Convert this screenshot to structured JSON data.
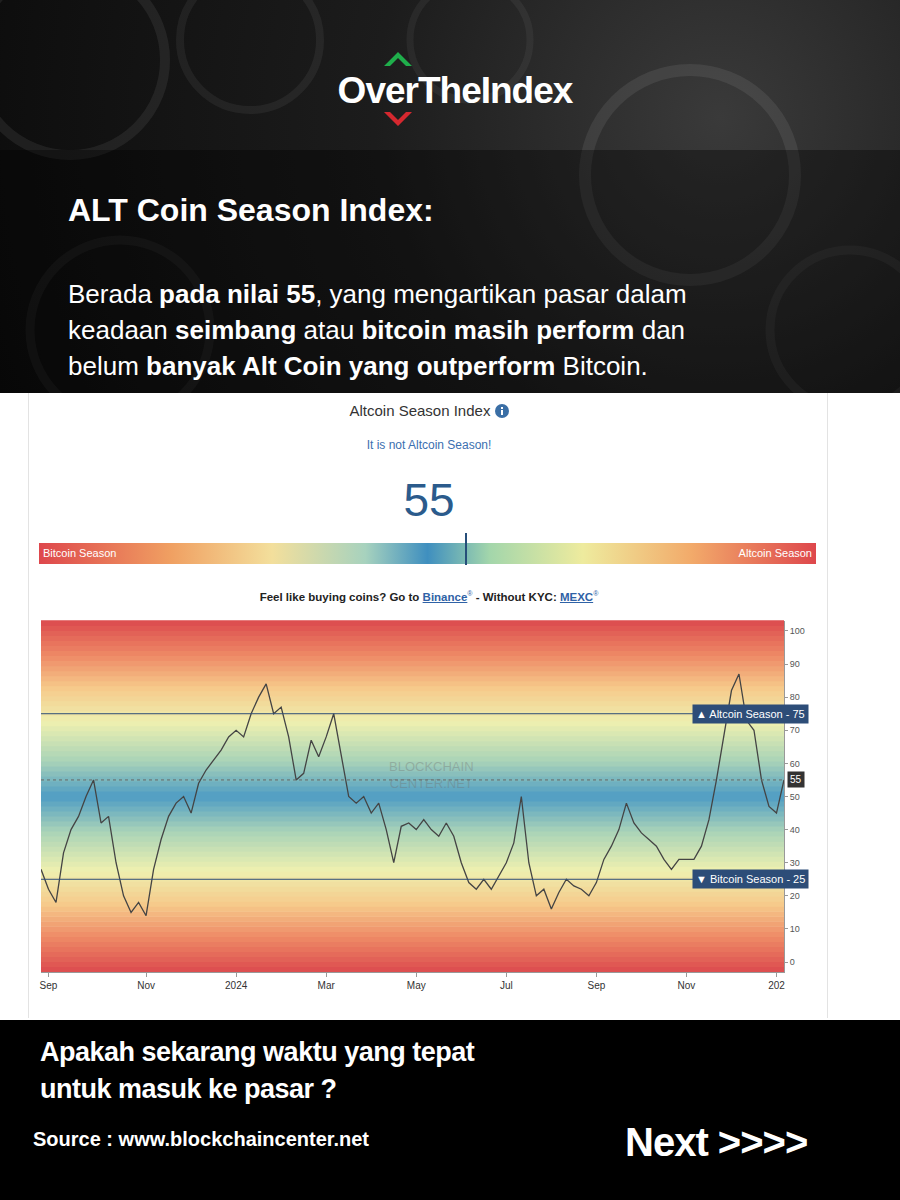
{
  "header": {
    "logo": "OverTheIndex",
    "heading": "ALT Coin Season Index:",
    "paragraph_lines": [
      [
        {
          "text": "Berada ",
          "bold": false
        },
        {
          "text": "pada nilai 55",
          "bold": true
        },
        {
          "text": ", yang mengartikan pasar dalam",
          "bold": false
        }
      ],
      [
        {
          "text": "keadaan ",
          "bold": false
        },
        {
          "text": "seimbang",
          "bold": true
        },
        {
          "text": " atau ",
          "bold": false
        },
        {
          "text": "bitcoin masih perform",
          "bold": true
        },
        {
          "text": " dan",
          "bold": false
        }
      ],
      [
        {
          "text": "belum ",
          "bold": false
        },
        {
          "text": "banyak Alt Coin yang outperform",
          "bold": true
        },
        {
          "text": " Bitcoin.",
          "bold": false
        }
      ]
    ]
  },
  "widget": {
    "title": "Altcoin Season Index",
    "status": "It is not Altcoin Season!",
    "value": 55,
    "gauge": {
      "range": [
        0,
        100
      ],
      "left_label": "Bitcoin Season",
      "right_label": "Altcoin Season"
    },
    "promo": [
      {
        "text": "Feel like buying coins? Go to ",
        "style": "plain"
      },
      {
        "text": "Binance",
        "style": "link"
      },
      {
        "text": "®",
        "style": "sup"
      },
      {
        "text": " - Without KYC: ",
        "style": "plain"
      },
      {
        "text": "MEXC",
        "style": "link"
      },
      {
        "text": "®",
        "style": "sup"
      }
    ]
  },
  "chart_data": {
    "type": "line",
    "categories": [
      null,
      "Sep",
      null,
      null,
      null,
      null,
      null,
      null,
      null,
      null,
      null,
      null,
      null,
      null,
      "Nov",
      null,
      null,
      null,
      null,
      null,
      null,
      null,
      null,
      null,
      null,
      null,
      "2024",
      null,
      null,
      null,
      null,
      null,
      null,
      null,
      null,
      null,
      null,
      null,
      "Mar",
      null,
      null,
      null,
      null,
      null,
      null,
      null,
      null,
      null,
      null,
      null,
      "May",
      null,
      null,
      null,
      null,
      null,
      null,
      null,
      null,
      null,
      null,
      null,
      "Jul",
      null,
      null,
      null,
      null,
      null,
      null,
      null,
      null,
      null,
      null,
      null,
      "Sep",
      null,
      null,
      null,
      null,
      null,
      null,
      null,
      null,
      null,
      null,
      null,
      "Nov",
      null,
      null,
      null,
      null,
      null,
      null,
      null,
      null,
      null,
      null,
      null,
      "202",
      null
    ],
    "values": [
      28,
      22,
      18,
      33,
      40,
      44,
      50,
      55,
      42,
      44,
      30,
      20,
      15,
      18,
      14,
      28,
      37,
      44,
      48,
      50,
      45,
      54,
      58,
      61,
      64,
      68,
      70,
      68,
      75,
      80,
      84,
      75,
      77,
      68,
      55,
      57,
      67,
      62,
      68,
      75,
      62,
      50,
      48,
      50,
      45,
      48,
      40,
      30,
      41,
      42,
      40,
      43,
      40,
      38,
      42,
      38,
      30,
      24,
      22,
      25,
      22,
      26,
      30,
      36,
      50,
      30,
      20,
      22,
      16,
      21,
      25,
      23,
      22,
      20,
      24,
      31,
      35,
      40,
      48,
      42,
      39,
      37,
      35,
      31,
      28,
      31,
      31,
      31,
      35,
      43,
      55,
      68,
      82,
      87,
      73,
      70,
      55,
      47,
      45,
      55
    ],
    "color": "#444444",
    "ylim": [
      -3,
      103
    ],
    "yticks": [
      0,
      10,
      20,
      30,
      40,
      50,
      60,
      70,
      80,
      90,
      100
    ],
    "grid": false,
    "annotations": [
      {
        "value": 75,
        "label": "▲ Altcoin Season - 75",
        "line_style": "solid"
      },
      {
        "value": 25,
        "label": "▼ Bitcoin Season - 25",
        "line_style": "solid"
      },
      {
        "value": 55,
        "label": "55",
        "line_style": "dotted"
      }
    ],
    "watermark": [
      "BLOCKCHAIN",
      "CENTER.NET"
    ]
  },
  "footer": {
    "question_lines": [
      "Apakah sekarang waktu yang tepat",
      "untuk masuk ke pasar ?"
    ],
    "source": "Source : www.blockchaincenter.net",
    "next": "Next >>>>"
  }
}
